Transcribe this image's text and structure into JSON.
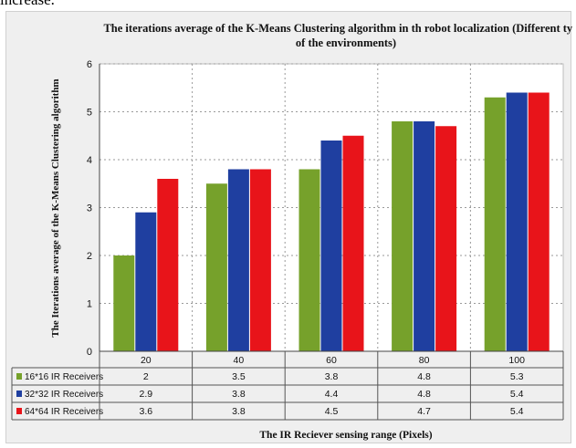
{
  "page": {
    "top_clip_text": "increase."
  },
  "chart_data": {
    "type": "bar",
    "title_line1": "The iterations average of the K-Means Clustering algorithm in th robot localization (Different types",
    "title_line2": "of the environments)",
    "ylabel": "The Iterations average of the K-Means Clustering algorithm",
    "xlabel": "The IR Reciever sensing range (Pixels)",
    "categories": [
      "20",
      "40",
      "60",
      "80",
      "100"
    ],
    "ylim": [
      0,
      6
    ],
    "yticks": [
      "0",
      "1",
      "2",
      "3",
      "4",
      "5",
      "6"
    ],
    "grid": true,
    "legend": "data-table",
    "series": [
      {
        "name": "16*16 IR Receivers",
        "color": "#76a12b",
        "values": [
          2,
          3.5,
          3.8,
          4.8,
          5.3
        ],
        "labels": [
          "2",
          "3.5",
          "3.8",
          "4.8",
          "5.3"
        ]
      },
      {
        "name": "32*32 IR Receivers",
        "color": "#1f3fa0",
        "values": [
          2.9,
          3.8,
          4.4,
          4.8,
          5.4
        ],
        "labels": [
          "2.9",
          "3.8",
          "4.4",
          "4.8",
          "5.4"
        ]
      },
      {
        "name": "64*64 IR Receivers",
        "color": "#e8141a",
        "values": [
          3.6,
          3.8,
          4.5,
          4.7,
          5.4
        ],
        "labels": [
          "3.6",
          "3.8",
          "4.5",
          "4.7",
          "5.4"
        ]
      }
    ]
  }
}
